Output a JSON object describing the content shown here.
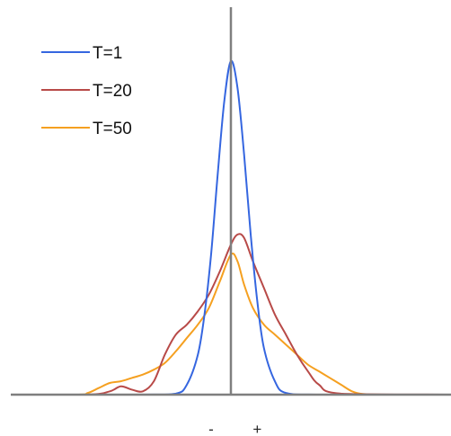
{
  "chart_data": {
    "type": "line",
    "xlim": [
      -10,
      10
    ],
    "ylim": [
      0,
      1
    ],
    "grid": false,
    "legend_position": "top-left",
    "x_tick_labels": [
      "-",
      "+"
    ],
    "x_ticks": [
      -0.9,
      1.2
    ],
    "zero_line": true,
    "series": [
      {
        "name": "T=1",
        "color": "#3566e0",
        "x": [
          -10,
          -4,
          -2.5,
          -2,
          -1.5,
          -1.2,
          -0.9,
          -0.6,
          -0.3,
          0,
          0.3,
          0.6,
          0.9,
          1.2,
          1.5,
          2,
          2.5,
          4,
          10
        ],
        "y": [
          0,
          0,
          0.003,
          0.03,
          0.12,
          0.24,
          0.42,
          0.66,
          0.88,
          1.0,
          0.92,
          0.72,
          0.48,
          0.28,
          0.14,
          0.04,
          0.005,
          0,
          0
        ]
      },
      {
        "name": "T=20",
        "color": "#b84a48",
        "x": [
          -10,
          -6.5,
          -5.5,
          -5,
          -4.5,
          -4,
          -3.5,
          -3,
          -2.5,
          -2,
          -1.5,
          -1,
          -0.5,
          0,
          0.3,
          0.6,
          1,
          1.5,
          2,
          2.5,
          3,
          3.5,
          4,
          5,
          10
        ],
        "y": [
          0,
          0,
          0.01,
          0.025,
          0.015,
          0.01,
          0.04,
          0.12,
          0.18,
          0.21,
          0.25,
          0.3,
          0.37,
          0.45,
          0.48,
          0.47,
          0.4,
          0.32,
          0.24,
          0.18,
          0.12,
          0.07,
          0.03,
          0.003,
          0
        ]
      },
      {
        "name": "T=50",
        "color": "#f5a020",
        "x": [
          -10,
          -7,
          -6.5,
          -6,
          -5.5,
          -5,
          -4.5,
          -4,
          -3.5,
          -3,
          -2.5,
          -2,
          -1.5,
          -1,
          -0.5,
          0,
          0.3,
          0.6,
          1,
          1.5,
          2,
          2.5,
          3,
          3.5,
          4,
          4.5,
          5,
          5.5,
          6,
          7,
          10
        ],
        "y": [
          0,
          0,
          0.005,
          0.02,
          0.035,
          0.04,
          0.05,
          0.06,
          0.075,
          0.095,
          0.13,
          0.17,
          0.21,
          0.26,
          0.34,
          0.42,
          0.4,
          0.33,
          0.26,
          0.21,
          0.18,
          0.15,
          0.12,
          0.09,
          0.07,
          0.05,
          0.03,
          0.01,
          0.002,
          0,
          0
        ]
      }
    ]
  }
}
